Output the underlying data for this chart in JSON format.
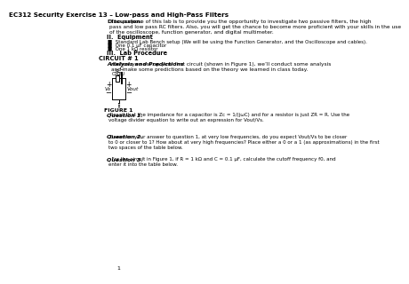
{
  "title": "EC312 Security Exercise 13 – Low-pass and High-Pass Filters",
  "bg_color": "#ffffff",
  "text_color": "#000000",
  "discussion_label": "Discussion:",
  "discussion_text": " The purpose of this lab is to provide you the opportunity to investigate two passive filters, the high\npass and low pass RC filters. Also, you will get the chance to become more proficient with your skills in the use\nof the oscilloscope, function generator, and digital multimeter.",
  "section_ii": "II.  Equipment",
  "equip_items": [
    "Standard Lab Bench setup (We will be using the Function Generator, and the Oscilloscope and cables).",
    "One 0.1 μF capacitor",
    "One 1 kΩ resistor"
  ],
  "section_iii": "III.  Lab Procedure",
  "circuit_header": "CIRCUIT # 1",
  "analysis_label": "Analysis and Predictions",
  "analysis_text": " Before you set up your first circuit (shown in Figure 1), we’ll conduct some analysis\nand make some predictions based on the theory we learned in class today.",
  "figure_label": "FIGURE 1",
  "q1_label": "Question 1.",
  "q1_text": " Recall that the impedance for a capacitor is Zc = 1/(jωC) and for a resistor is just ZR = R. Use the\nvoltage divider equation to write out an expression for Vout/Vs.",
  "q2_label": "Question 2.",
  "q2_text": " Based on your answer to question 1, at very low frequencies, do you expect Vout/Vs to be closer\nto 0 or closer to 1? How about at very high frequencies? Place either a 0 or a 1 (as approximations) in the first\ntwo spaces of the table below.",
  "q3_label": "Question 3.",
  "q3_text": "  For the circuit in Figure 1, if R = 1 kΩ and C = 0.1 μF, calculate the cutoff frequency f0, and\nenter it into the table below.",
  "page_num": "1"
}
